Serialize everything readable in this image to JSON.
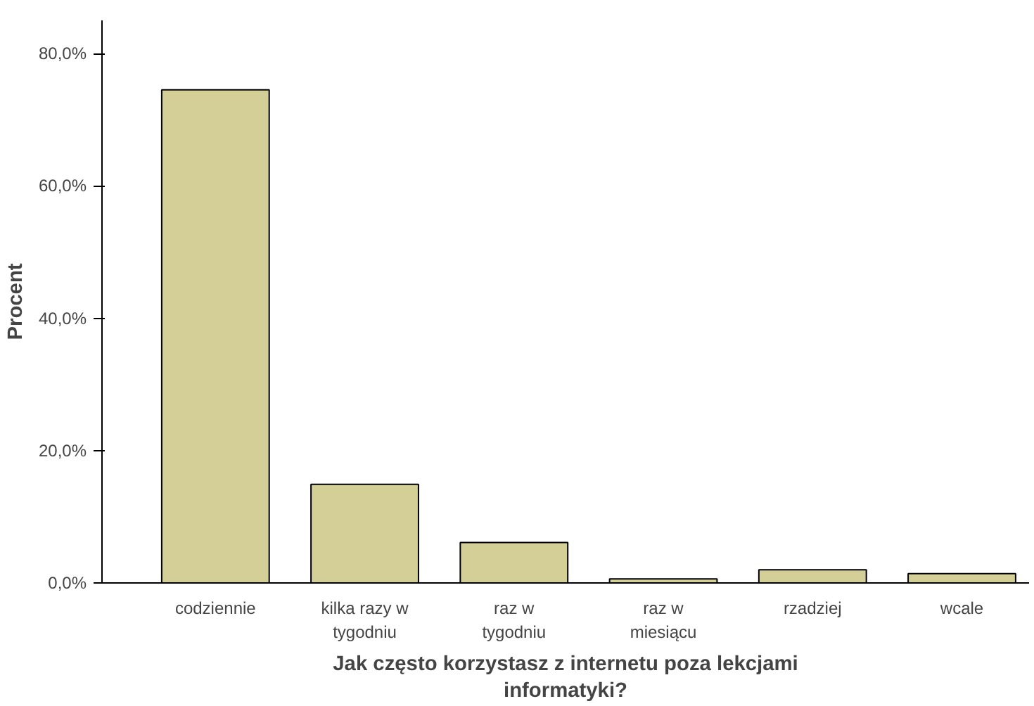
{
  "chart_data": {
    "type": "bar",
    "xlabel": "Jak często korzystasz z internetu poza lekcjami\ninformatyki?",
    "ylabel": "Procent",
    "categories": [
      "codziennie",
      "kilka razy w\ntygodniu",
      "raz w\ntygodniu",
      "raz w\nmiesiącu",
      "rzadziej",
      "wcale"
    ],
    "values": [
      74.5,
      14.9,
      6.1,
      0.6,
      2.0,
      1.4
    ],
    "color": "#d4cf96",
    "ylim": [
      0,
      85
    ],
    "yticks": [
      {
        "value": 0,
        "label": "0,0%"
      },
      {
        "value": 20,
        "label": "20,0%"
      },
      {
        "value": 40,
        "label": "40,0%"
      },
      {
        "value": 60,
        "label": "60,0%"
      },
      {
        "value": 80,
        "label": "80,0%"
      }
    ],
    "grid": false
  }
}
